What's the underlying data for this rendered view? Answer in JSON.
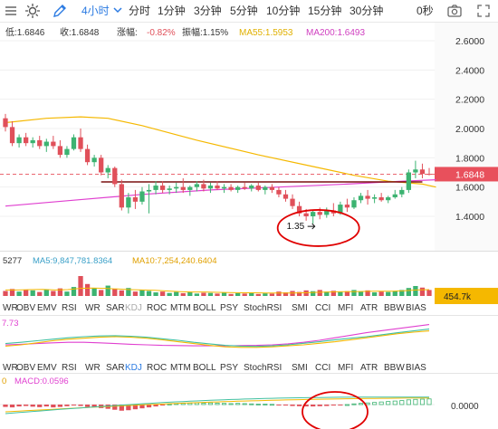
{
  "toolbar": {
    "interval_selected": "4小时",
    "intervals": [
      "分时",
      "1分钟",
      "3分钟",
      "5分钟",
      "10分钟",
      "15分钟",
      "30分钟"
    ],
    "timer": "0秒",
    "icons": [
      "sun-icon",
      "pencil-icon",
      "chevron-down-icon",
      "camera-icon",
      "menu-icon"
    ]
  },
  "info_bar": {
    "low": "低:1.6846",
    "close": "收:1.6848",
    "change_label": "涨幅:",
    "change_value": "-0.82%",
    "amp": "振幅:1.15%",
    "ma5": "MA55:1.5953",
    "ma200": "MA200:1.6493"
  },
  "colors": {
    "up": "#3cb371",
    "down": "#e0505a",
    "ma_yellow": "#f5b800",
    "ma_magenta": "#e040d0",
    "price_tag": "#e8505c",
    "vol_tag": "#f5b800",
    "accent": "#2a7ae2",
    "annotation_ring": "#e00000"
  },
  "indicator_tabs": [
    "WR",
    "OBV",
    "EMV",
    "RSI",
    "WR",
    "SAR",
    "KDJ",
    "ROC",
    "MTM",
    "BOLL",
    "PSY",
    "StochRSI",
    "SMI",
    "CCI",
    "MFI",
    "ATR",
    "BBW",
    "BIAS"
  ],
  "volume_bar": {
    "prefix": "5277",
    "ma5": "MA5:9,847,781.8364",
    "ma10": "MA10:7,254,240.6404",
    "current_tag": "454.7k"
  },
  "osc_pane": {
    "value_fragment": "7.73"
  },
  "macd_pane": {
    "prefix": "0",
    "label": "MACD:0.0596",
    "zero_label": "0.0000"
  },
  "annotation": {
    "low_marker": "1.35"
  },
  "chart_data": {
    "type": "candlestick",
    "y_axis": {
      "ticks": [
        "2.6000",
        "2.4000",
        "2.2000",
        "2.0000",
        "1.8000",
        "1.6000",
        "1.4000"
      ],
      "range": [
        1.26,
        2.66
      ]
    },
    "current_price": "1.6848",
    "candles": [
      [
        2.07,
        2.1,
        1.98,
        2.01
      ],
      [
        2.01,
        2.05,
        1.88,
        1.9
      ],
      [
        1.9,
        1.96,
        1.87,
        1.94
      ],
      [
        1.94,
        1.97,
        1.88,
        1.9
      ],
      [
        1.9,
        1.94,
        1.87,
        1.92
      ],
      [
        1.92,
        1.95,
        1.86,
        1.88
      ],
      [
        1.88,
        1.93,
        1.84,
        1.91
      ],
      [
        1.91,
        1.95,
        1.86,
        1.88
      ],
      [
        1.88,
        1.92,
        1.8,
        1.82
      ],
      [
        1.82,
        1.88,
        1.8,
        1.86
      ],
      [
        1.86,
        1.96,
        1.85,
        1.94
      ],
      [
        1.94,
        2.0,
        1.84,
        1.86
      ],
      [
        1.86,
        1.89,
        1.75,
        1.77
      ],
      [
        1.77,
        1.82,
        1.74,
        1.8
      ],
      [
        1.8,
        1.82,
        1.68,
        1.7
      ],
      [
        1.7,
        1.75,
        1.66,
        1.73
      ],
      [
        1.73,
        1.74,
        1.6,
        1.62
      ],
      [
        1.62,
        1.65,
        1.44,
        1.46
      ],
      [
        1.46,
        1.56,
        1.42,
        1.53
      ],
      [
        1.53,
        1.58,
        1.45,
        1.5
      ],
      [
        1.5,
        1.6,
        1.48,
        1.57
      ],
      [
        1.57,
        1.62,
        1.42,
        1.58
      ],
      [
        1.58,
        1.64,
        1.55,
        1.61
      ],
      [
        1.61,
        1.64,
        1.56,
        1.58
      ],
      [
        1.58,
        1.61,
        1.55,
        1.59
      ],
      [
        1.59,
        1.63,
        1.56,
        1.6
      ],
      [
        1.6,
        1.66,
        1.56,
        1.58
      ],
      [
        1.58,
        1.61,
        1.54,
        1.6
      ],
      [
        1.6,
        1.64,
        1.57,
        1.62
      ],
      [
        1.62,
        1.65,
        1.57,
        1.59
      ],
      [
        1.59,
        1.63,
        1.56,
        1.61
      ],
      [
        1.61,
        1.64,
        1.58,
        1.59
      ],
      [
        1.59,
        1.62,
        1.56,
        1.6
      ],
      [
        1.6,
        1.62,
        1.57,
        1.58
      ],
      [
        1.58,
        1.61,
        1.56,
        1.6
      ],
      [
        1.6,
        1.63,
        1.58,
        1.59
      ],
      [
        1.59,
        1.62,
        1.57,
        1.61
      ],
      [
        1.61,
        1.63,
        1.57,
        1.58
      ],
      [
        1.58,
        1.61,
        1.55,
        1.6
      ],
      [
        1.6,
        1.62,
        1.56,
        1.58
      ],
      [
        1.58,
        1.6,
        1.53,
        1.55
      ],
      [
        1.55,
        1.58,
        1.5,
        1.52
      ],
      [
        1.52,
        1.55,
        1.45,
        1.47
      ],
      [
        1.47,
        1.5,
        1.4,
        1.42
      ],
      [
        1.42,
        1.45,
        1.37,
        1.4
      ],
      [
        1.4,
        1.44,
        1.35,
        1.43
      ],
      [
        1.43,
        1.46,
        1.38,
        1.41
      ],
      [
        1.41,
        1.46,
        1.39,
        1.44
      ],
      [
        1.44,
        1.49,
        1.4,
        1.42
      ],
      [
        1.42,
        1.5,
        1.41,
        1.48
      ],
      [
        1.48,
        1.52,
        1.43,
        1.46
      ],
      [
        1.46,
        1.53,
        1.45,
        1.51
      ],
      [
        1.51,
        1.56,
        1.49,
        1.54
      ],
      [
        1.54,
        1.58,
        1.48,
        1.52
      ],
      [
        1.52,
        1.55,
        1.49,
        1.53
      ],
      [
        1.53,
        1.56,
        1.5,
        1.51
      ],
      [
        1.51,
        1.54,
        1.49,
        1.53
      ],
      [
        1.53,
        1.58,
        1.52,
        1.55
      ],
      [
        1.55,
        1.6,
        1.53,
        1.58
      ],
      [
        1.58,
        1.72,
        1.56,
        1.7
      ],
      [
        1.7,
        1.78,
        1.66,
        1.72
      ],
      [
        1.72,
        1.76,
        1.66,
        1.69
      ],
      [
        1.69,
        1.73,
        1.68,
        1.6848
      ]
    ],
    "ma_yellow": [
      [
        0,
        2.04
      ],
      [
        6,
        2.07
      ],
      [
        11,
        2.08
      ],
      [
        15,
        2.07
      ],
      [
        20,
        2.02
      ],
      [
        28,
        1.92
      ],
      [
        37,
        1.82
      ],
      [
        45,
        1.74
      ],
      [
        51,
        1.68
      ],
      [
        56,
        1.64
      ],
      [
        61,
        1.62
      ],
      [
        63,
        1.6
      ]
    ],
    "ma_magenta": [
      [
        0,
        1.47
      ],
      [
        10,
        1.51
      ],
      [
        20,
        1.55
      ],
      [
        30,
        1.58
      ],
      [
        40,
        1.6
      ],
      [
        50,
        1.62
      ],
      [
        58,
        1.64
      ],
      [
        63,
        1.65
      ]
    ],
    "resistance_line": [
      [
        14,
        1.635
      ],
      [
        61,
        1.635
      ]
    ],
    "volumes": [
      0.25,
      0.35,
      0.22,
      0.3,
      0.28,
      0.2,
      0.33,
      0.25,
      0.38,
      0.22,
      0.45,
      1.0,
      0.6,
      0.4,
      0.3,
      0.52,
      0.35,
      0.28,
      0.4,
      0.22,
      0.3,
      0.25,
      0.18,
      0.22,
      0.15,
      0.2,
      0.14,
      0.18,
      0.12,
      0.16,
      0.15,
      0.12,
      0.18,
      0.1,
      0.14,
      0.12,
      0.15,
      0.1,
      0.13,
      0.12,
      0.22,
      0.18,
      0.25,
      0.2,
      0.28,
      0.24,
      0.3,
      0.22,
      0.26,
      0.2,
      0.24,
      0.3,
      0.22,
      0.28,
      0.18,
      0.22,
      0.2,
      0.25,
      0.3,
      0.4,
      0.5,
      0.42,
      0.3
    ],
    "vol_ma_yellow": [
      0.3,
      0.3,
      0.32,
      0.33,
      0.3,
      0.32,
      0.38,
      0.4,
      0.38,
      0.35,
      0.32,
      0.3,
      0.28,
      0.25,
      0.22,
      0.2,
      0.2,
      0.18,
      0.17,
      0.16,
      0.16,
      0.15,
      0.15,
      0.15,
      0.16,
      0.18,
      0.2,
      0.22,
      0.22,
      0.23,
      0.24,
      0.24,
      0.26,
      0.3,
      0.32
    ],
    "osc_green": [
      0.55,
      0.6,
      0.66,
      0.72,
      0.78,
      0.82,
      0.85,
      0.86,
      0.84,
      0.8,
      0.74,
      0.68,
      0.6,
      0.54,
      0.48,
      0.45,
      0.44,
      0.46,
      0.5,
      0.56,
      0.62,
      0.7,
      0.76,
      0.82,
      0.9,
      0.98,
      1.05,
      1.12
    ],
    "osc_pink": [
      0.5,
      0.52,
      0.55,
      0.58,
      0.6,
      0.6,
      0.58,
      0.55,
      0.52,
      0.5,
      0.48,
      0.47,
      0.46,
      0.46,
      0.46,
      0.47,
      0.48,
      0.5,
      0.54,
      0.6,
      0.68,
      0.78,
      0.88,
      0.98,
      1.06,
      1.14,
      1.22,
      1.3
    ],
    "osc_yellow": [
      0.45,
      0.5,
      0.58,
      0.66,
      0.72,
      0.76,
      0.8,
      0.82,
      0.8,
      0.76,
      0.7,
      0.62,
      0.55,
      0.48,
      0.42,
      0.4,
      0.4,
      0.42,
      0.46,
      0.5,
      0.56,
      0.62,
      0.7,
      0.78,
      0.86,
      0.94,
      1.0,
      1.05
    ],
    "macd_hist": [
      -0.01,
      -0.012,
      -0.008,
      -0.006,
      -0.009,
      -0.011,
      -0.008,
      -0.012,
      -0.01,
      -0.007,
      -0.004,
      -0.006,
      -0.01,
      -0.012,
      -0.015,
      -0.018,
      -0.022,
      -0.026,
      -0.024,
      -0.02,
      -0.016,
      -0.012,
      -0.008,
      -0.004,
      0.002,
      0.004,
      0.005,
      0.006,
      0.007,
      0.006,
      0.007,
      0.006,
      0.005,
      0.004,
      0.005,
      0.004,
      0.003,
      0.002,
      0.002,
      0.001,
      -0.002,
      -0.004,
      -0.006,
      -0.007,
      -0.008,
      -0.008,
      -0.007,
      -0.006,
      -0.004,
      -0.002,
      0.0,
      0.003,
      0.005,
      0.007,
      0.009,
      0.011,
      0.013,
      0.015,
      0.017,
      0.02,
      0.022,
      0.023,
      0.024
    ]
  }
}
